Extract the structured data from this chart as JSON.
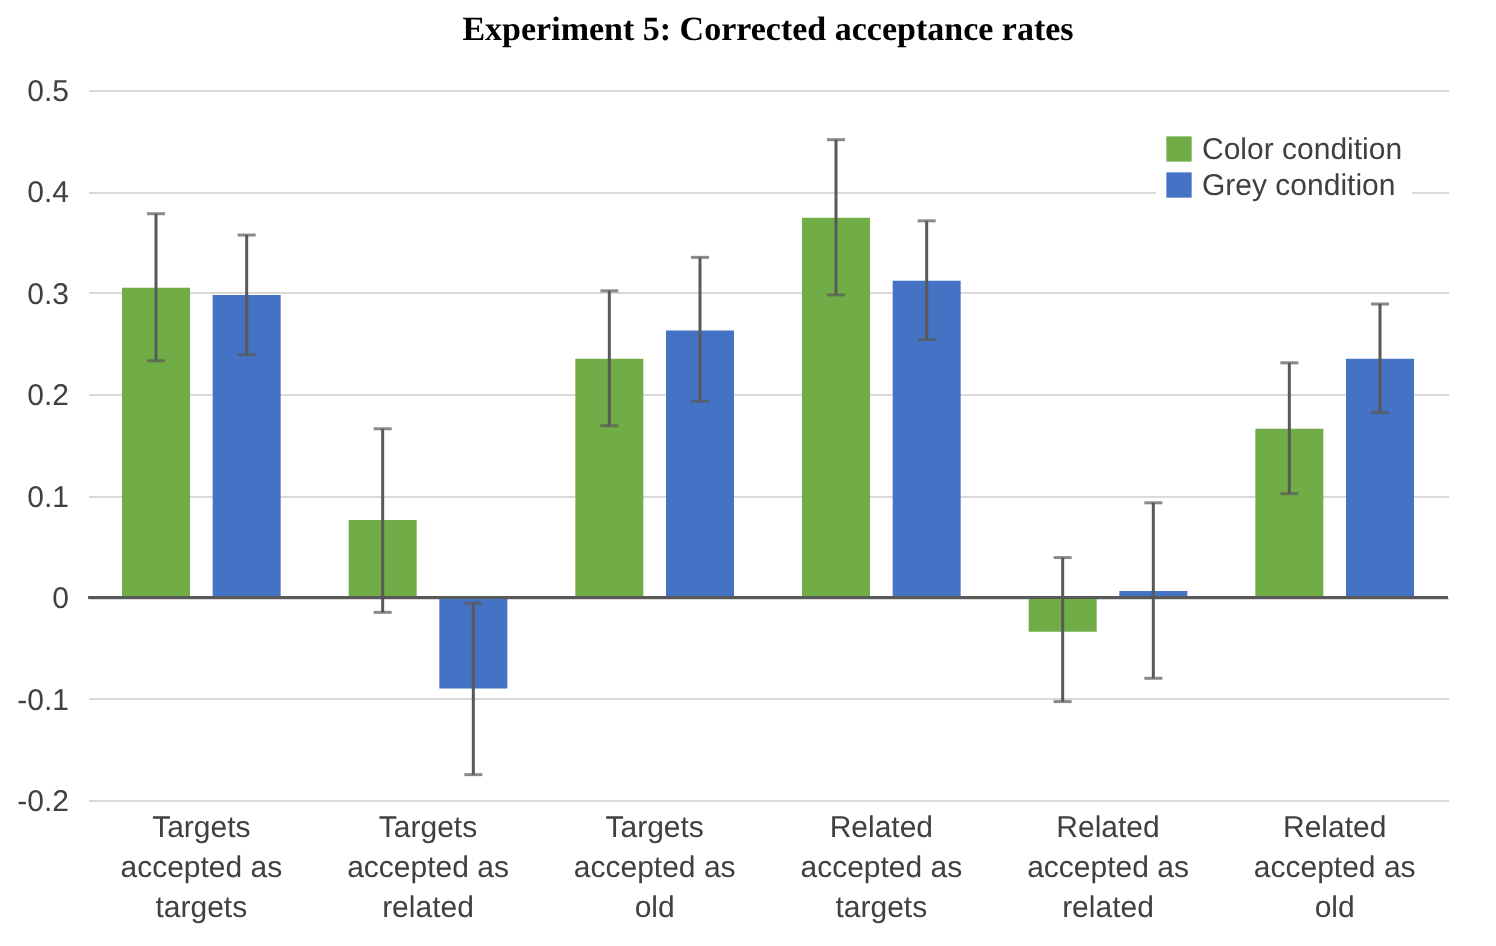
{
  "chart_data": {
    "type": "bar",
    "title": "Experiment 5: Corrected acceptance rates",
    "categories": [
      "Targets accepted as targets",
      "Targets accepted as related",
      "Targets accepted as old",
      "Related accepted as targets",
      "Related accepted as related",
      "Related accepted as old"
    ],
    "series": [
      {
        "name": "Color condition",
        "color": "#70ad47",
        "values": [
          0.305,
          0.076,
          0.235,
          0.374,
          -0.034,
          0.166
        ],
        "errors": [
          [
            0.233,
            0.378
          ],
          [
            -0.015,
            0.166
          ],
          [
            0.169,
            0.302
          ],
          [
            0.298,
            0.451
          ],
          [
            -0.103,
            0.039
          ],
          [
            0.102,
            0.231
          ]
        ]
      },
      {
        "name": "Grey condition",
        "color": "#4472c4",
        "values": [
          0.298,
          -0.09,
          0.263,
          0.312,
          0.006,
          0.235
        ],
        "errors": [
          [
            0.239,
            0.357
          ],
          [
            -0.175,
            -0.006
          ],
          [
            0.193,
            0.335
          ],
          [
            0.254,
            0.371
          ],
          [
            -0.08,
            0.093
          ],
          [
            0.182,
            0.289
          ]
        ]
      }
    ],
    "ylim": [
      -0.2,
      0.5
    ],
    "yticks": [
      -0.2,
      -0.1,
      0,
      0.1,
      0.2,
      0.3,
      0.4,
      0.5
    ],
    "grid": "y",
    "legend": "top right"
  }
}
